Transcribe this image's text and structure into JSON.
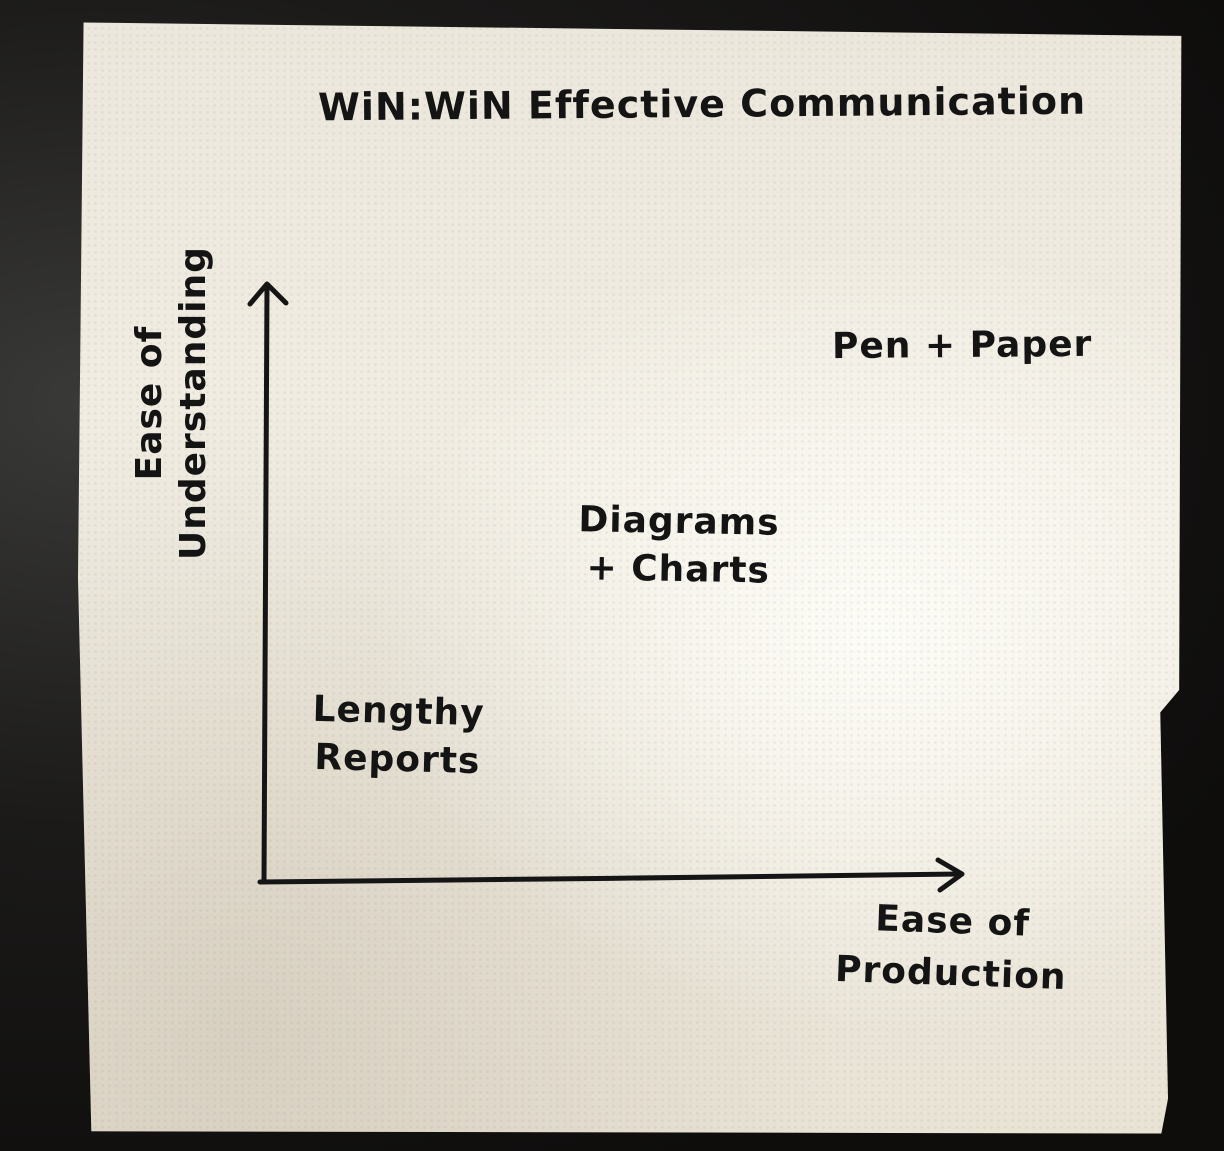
{
  "diagram": {
    "title": "WiN:WiN Effective Communication",
    "y_axis_label": [
      "Ease of",
      "Understanding"
    ],
    "x_axis_label": [
      "Ease of",
      "Production"
    ],
    "items": [
      {
        "lines": [
          "Pen + Paper"
        ]
      },
      {
        "lines": [
          "Diagrams",
          "+ Charts"
        ]
      },
      {
        "lines": [
          "Lengthy",
          "Reports"
        ]
      }
    ]
  },
  "colors": {
    "ink": "#141414",
    "napkin": "#efeae0",
    "background": "#141312"
  }
}
